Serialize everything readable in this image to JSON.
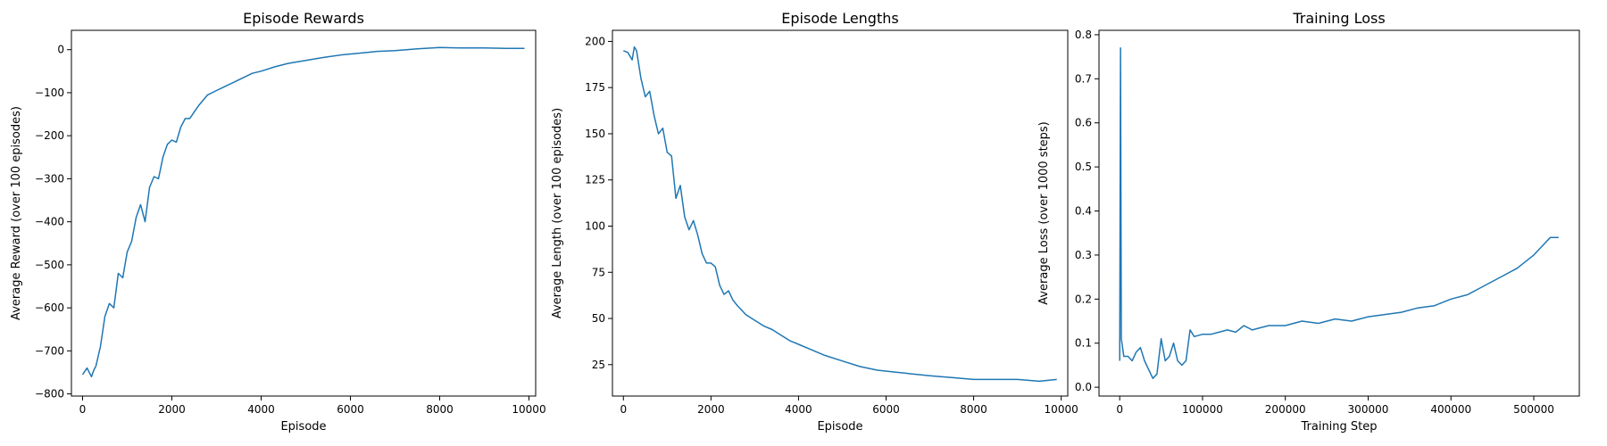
{
  "colors": {
    "series": "#1f77b4"
  },
  "chart_data": [
    {
      "type": "line",
      "title": "Episode Rewards",
      "xlabel": "Episode",
      "ylabel": "Average Reward (over 100 episodes)",
      "xlim": [
        -250,
        10150
      ],
      "ylim": [
        -805,
        45
      ],
      "xticks": [
        0,
        2000,
        4000,
        6000,
        8000,
        10000
      ],
      "xtick_labels": [
        "0",
        "2000",
        "4000",
        "6000",
        "8000",
        "10000"
      ],
      "yticks": [
        -800,
        -700,
        -600,
        -500,
        -400,
        -300,
        -200,
        -100,
        0
      ],
      "ytick_labels": [
        "−800",
        "−700",
        "−600",
        "−500",
        "−400",
        "−300",
        "−200",
        "−100",
        "0"
      ],
      "grid": false,
      "series": [
        {
          "x": [
            0,
            100,
            200,
            250,
            300,
            400,
            500,
            600,
            700,
            800,
            900,
            1000,
            1100,
            1200,
            1300,
            1400,
            1500,
            1600,
            1700,
            1800,
            1900,
            2000,
            2100,
            2200,
            2300,
            2400,
            2500,
            2600,
            2800,
            3000,
            3200,
            3400,
            3600,
            3800,
            4000,
            4300,
            4600,
            5000,
            5400,
            5800,
            6200,
            6600,
            7000,
            7500,
            8000,
            8500,
            9000,
            9500,
            9900
          ],
          "y": [
            -755,
            -740,
            -760,
            -745,
            -735,
            -690,
            -620,
            -590,
            -600,
            -520,
            -530,
            -470,
            -445,
            -390,
            -360,
            -400,
            -320,
            -295,
            -300,
            -250,
            -220,
            -210,
            -215,
            -180,
            -160,
            -160,
            -145,
            -130,
            -105,
            -95,
            -85,
            -75,
            -65,
            -55,
            -50,
            -40,
            -32,
            -25,
            -18,
            -12,
            -8,
            -4,
            -2,
            2,
            5,
            4,
            4,
            3,
            3
          ]
        }
      ]
    },
    {
      "type": "line",
      "title": "Episode Lengths",
      "xlabel": "Episode",
      "ylabel": "Average Length (over 100 episodes)",
      "xlim": [
        -250,
        10150
      ],
      "ylim": [
        8,
        206
      ],
      "xticks": [
        0,
        2000,
        4000,
        6000,
        8000,
        10000
      ],
      "xtick_labels": [
        "0",
        "2000",
        "4000",
        "6000",
        "8000",
        "10000"
      ],
      "yticks": [
        25,
        50,
        75,
        100,
        125,
        150,
        175,
        200
      ],
      "ytick_labels": [
        "25",
        "50",
        "75",
        "100",
        "125",
        "150",
        "175",
        "200"
      ],
      "grid": false,
      "series": [
        {
          "x": [
            0,
            100,
            200,
            250,
            300,
            400,
            500,
            600,
            700,
            800,
            900,
            1000,
            1100,
            1200,
            1300,
            1400,
            1500,
            1600,
            1700,
            1800,
            1900,
            2000,
            2100,
            2200,
            2300,
            2400,
            2500,
            2600,
            2800,
            3000,
            3200,
            3400,
            3600,
            3800,
            4000,
            4300,
            4600,
            5000,
            5400,
            5800,
            6200,
            6600,
            7000,
            7500,
            8000,
            8500,
            9000,
            9500,
            9900
          ],
          "y": [
            195,
            194,
            190,
            197,
            195,
            180,
            170,
            173,
            160,
            150,
            153,
            140,
            138,
            115,
            122,
            105,
            98,
            103,
            95,
            85,
            80,
            80,
            78,
            68,
            63,
            65,
            60,
            57,
            52,
            49,
            46,
            44,
            41,
            38,
            36,
            33,
            30,
            27,
            24,
            22,
            21,
            20,
            19,
            18,
            17,
            17,
            17,
            16,
            17
          ]
        }
      ]
    },
    {
      "type": "line",
      "title": "Training Loss",
      "xlabel": "Training Step",
      "ylabel": "Average Loss (over 1000 steps)",
      "xlim": [
        -25000,
        555000
      ],
      "ylim": [
        -0.02,
        0.81
      ],
      "xticks": [
        0,
        100000,
        200000,
        300000,
        400000,
        500000
      ],
      "xtick_labels": [
        "0",
        "100000",
        "200000",
        "300000",
        "400000",
        "500000"
      ],
      "yticks": [
        0.0,
        0.1,
        0.2,
        0.3,
        0.4,
        0.5,
        0.6,
        0.7,
        0.8
      ],
      "ytick_labels": [
        "0.0",
        "0.1",
        "0.2",
        "0.3",
        "0.4",
        "0.5",
        "0.6",
        "0.7",
        "0.8"
      ],
      "grid": false,
      "series": [
        {
          "x": [
            0,
            1000,
            2000,
            5000,
            10000,
            15000,
            20000,
            25000,
            30000,
            35000,
            40000,
            45000,
            50000,
            55000,
            60000,
            65000,
            70000,
            75000,
            80000,
            85000,
            90000,
            100000,
            110000,
            120000,
            130000,
            140000,
            150000,
            160000,
            170000,
            180000,
            200000,
            220000,
            240000,
            260000,
            280000,
            300000,
            320000,
            340000,
            360000,
            380000,
            400000,
            420000,
            440000,
            460000,
            480000,
            500000,
            510000,
            520000,
            530000
          ],
          "y": [
            0.06,
            0.77,
            0.11,
            0.07,
            0.07,
            0.06,
            0.08,
            0.09,
            0.06,
            0.04,
            0.02,
            0.03,
            0.11,
            0.06,
            0.07,
            0.1,
            0.06,
            0.05,
            0.06,
            0.13,
            0.115,
            0.12,
            0.12,
            0.125,
            0.13,
            0.125,
            0.14,
            0.13,
            0.135,
            0.14,
            0.14,
            0.15,
            0.145,
            0.155,
            0.15,
            0.16,
            0.165,
            0.17,
            0.18,
            0.185,
            0.2,
            0.21,
            0.23,
            0.25,
            0.27,
            0.3,
            0.32,
            0.34,
            0.34
          ]
        }
      ]
    }
  ]
}
